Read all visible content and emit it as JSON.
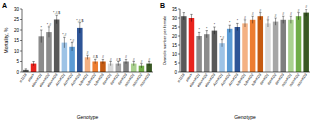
{
  "chart_data": [
    {
      "type": "bar",
      "title": "A",
      "x_label": "Genotype",
      "y_label": "Mortality, %",
      "categories": [
        "w1118",
        "elav>",
        "elav>KD1",
        "elav>KD2",
        "elav>KD3",
        "Act>KD1",
        "Act>KD2",
        "Act>KD3",
        "tub>KD1",
        "tub>KD2",
        "tub>KD3",
        "da>KD1",
        "da>KD2",
        "da>KD3",
        "nos>KD1",
        "nos>KD2",
        "nos>KD3"
      ],
      "values": [
        1,
        4,
        17,
        19,
        25,
        14,
        12,
        21,
        7,
        5,
        5,
        4,
        4,
        5,
        4,
        3,
        4
      ],
      "errors": [
        0.5,
        1,
        3,
        2.5,
        2,
        2.5,
        2,
        2.5,
        1,
        1,
        1,
        1,
        1,
        1,
        1,
        1,
        1
      ],
      "annotations": [
        null,
        null,
        "*",
        "*,#",
        "*,#,$",
        "*,#",
        "*,#",
        "*,#,$",
        "#",
        "#,$",
        "#",
        "#",
        "#,$",
        "#",
        "#",
        "#",
        "#"
      ],
      "colors": [
        "#595959",
        "#e8231d",
        "#8c8c8c",
        "#8c8c8c",
        "#595959",
        "#9dc3e6",
        "#5b9bd5",
        "#2e5597",
        "#f4b183",
        "#ed7d31",
        "#c55a11",
        "#d9d9d9",
        "#a6a6a6",
        "#7f7f7f",
        "#a9d18e",
        "#70ad47",
        "#385723"
      ],
      "ylim": [
        0,
        30
      ],
      "yticks": [
        0,
        5,
        10,
        15,
        20,
        25,
        30
      ]
    },
    {
      "type": "bar",
      "title": "B",
      "x_label": "Genotype",
      "y_label": "Ovariole number per female",
      "categories": [
        "w1118",
        "elav>",
        "elav>KD1",
        "elav>KD2",
        "elav>KD3",
        "Act>KD1",
        "Act>KD2",
        "Act>KD3",
        "tub>KD1",
        "tub>KD2",
        "tub>KD3",
        "da>KD1",
        "da>KD2",
        "da>KD3",
        "nos>KD1",
        "nos>KD2",
        "nos>KD3"
      ],
      "values": [
        31,
        30,
        20,
        21,
        23,
        16,
        24,
        25,
        27,
        29,
        31,
        27,
        28,
        29,
        29,
        31,
        33
      ],
      "errors": [
        2,
        2,
        2,
        2,
        2,
        2,
        2,
        2,
        2,
        2,
        2,
        2,
        2,
        2,
        2,
        2,
        2
      ],
      "annotations": [
        null,
        null,
        "*",
        "*",
        "*",
        "*,#",
        "*",
        "*",
        "#",
        "#",
        "#",
        "#",
        "#",
        "#",
        "#",
        "#",
        "#"
      ],
      "colors": [
        "#595959",
        "#e8231d",
        "#8c8c8c",
        "#8c8c8c",
        "#595959",
        "#9dc3e6",
        "#5b9bd5",
        "#2e5597",
        "#f4b183",
        "#ed7d31",
        "#c55a11",
        "#d9d9d9",
        "#a6a6a6",
        "#7f7f7f",
        "#a9d18e",
        "#70ad47",
        "#385723"
      ],
      "ylim": [
        0,
        35
      ],
      "yticks": [
        0,
        5,
        10,
        15,
        20,
        25,
        30,
        35
      ]
    }
  ]
}
